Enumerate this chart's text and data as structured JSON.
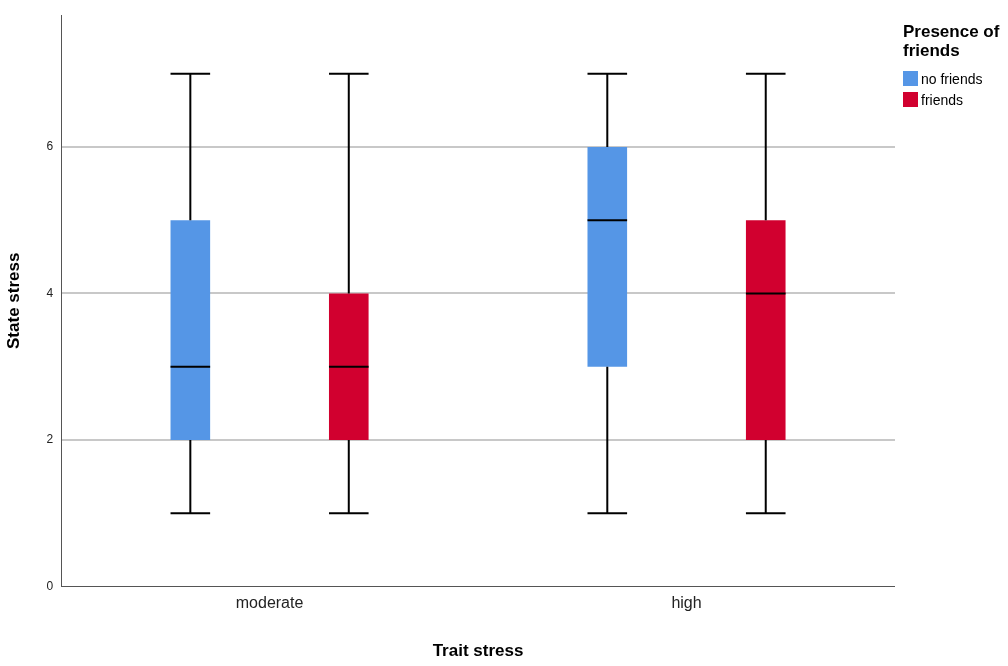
{
  "chart_data": {
    "type": "box",
    "xlabel": "Trait stress",
    "ylabel": "State stress",
    "legend_title": "Presence of friends",
    "categories": [
      "moderate",
      "high"
    ],
    "ylim": [
      0,
      7.8
    ],
    "yticks": [
      0,
      2,
      4,
      6
    ],
    "grid": "y",
    "legend": "top right",
    "series": [
      {
        "name": "no friends",
        "color": "#5596e6",
        "boxes": [
          {
            "low": 1,
            "q1": 2,
            "median": 3,
            "q3": 5,
            "high": 7
          },
          {
            "low": 1,
            "q1": 3,
            "median": 5,
            "q3": 6,
            "high": 7
          }
        ]
      },
      {
        "name": "friends",
        "color": "#d1002f",
        "boxes": [
          {
            "low": 1,
            "q1": 2,
            "median": 3,
            "q3": 4,
            "high": 7
          },
          {
            "low": 1,
            "q1": 2,
            "median": 4,
            "q3": 5,
            "high": 7
          }
        ]
      }
    ]
  }
}
